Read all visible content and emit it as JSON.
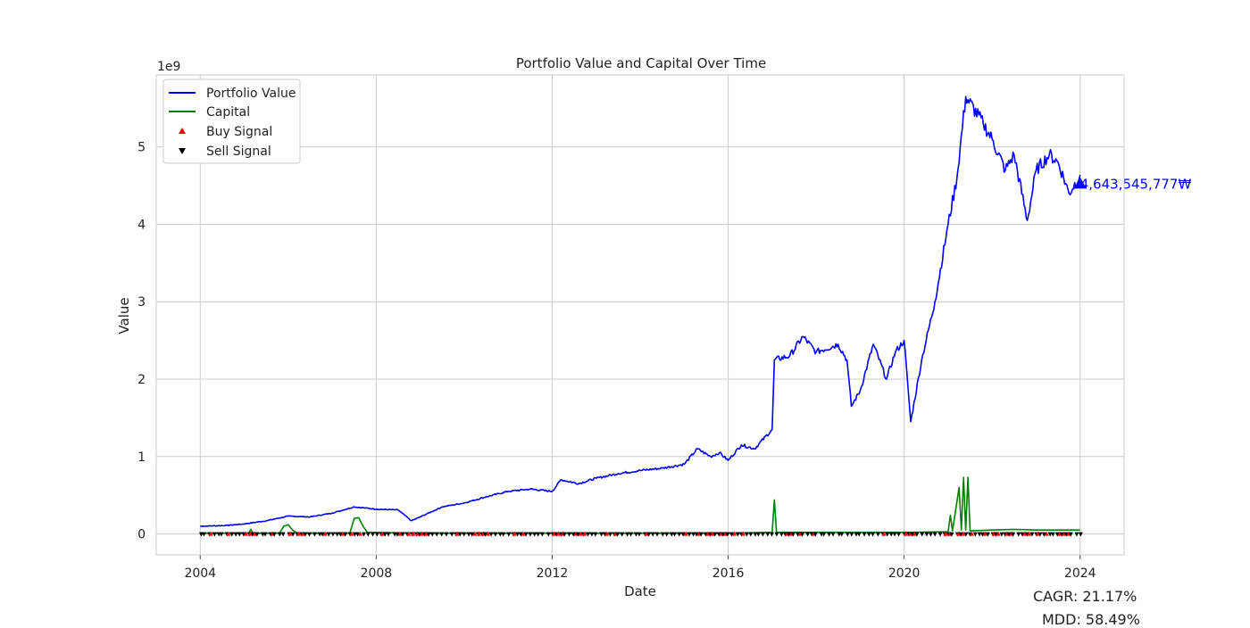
{
  "chart_data": {
    "type": "line",
    "title": "Portfolio Value and Capital Over Time",
    "xlabel": "Date",
    "ylabel": "Value",
    "y_offset_label": "1e9",
    "xlim": [
      2003.0,
      2025.0
    ],
    "ylim": [
      -0.27,
      5.93
    ],
    "x_ticks": [
      2004,
      2008,
      2012,
      2016,
      2020,
      2024
    ],
    "x_tick_labels": [
      "2004",
      "2008",
      "2012",
      "2016",
      "2020",
      "2024"
    ],
    "y_ticks": [
      0,
      1,
      2,
      3,
      4,
      5
    ],
    "y_tick_labels": [
      "0",
      "1",
      "2",
      "3",
      "4",
      "5"
    ],
    "grid": true,
    "legend_position": "top-left",
    "series": [
      {
        "name": "Portfolio Value",
        "color": "#0000ff",
        "points": [
          [
            2004.0,
            0.1
          ],
          [
            2004.6,
            0.11
          ],
          [
            2005.0,
            0.13
          ],
          [
            2005.5,
            0.17
          ],
          [
            2006.0,
            0.23
          ],
          [
            2006.5,
            0.22
          ],
          [
            2007.0,
            0.27
          ],
          [
            2007.5,
            0.35
          ],
          [
            2008.0,
            0.32
          ],
          [
            2008.5,
            0.31
          ],
          [
            2008.8,
            0.17
          ],
          [
            2009.0,
            0.22
          ],
          [
            2009.5,
            0.35
          ],
          [
            2010.0,
            0.4
          ],
          [
            2010.5,
            0.48
          ],
          [
            2011.0,
            0.55
          ],
          [
            2011.5,
            0.58
          ],
          [
            2012.0,
            0.55
          ],
          [
            2012.2,
            0.7
          ],
          [
            2012.6,
            0.65
          ],
          [
            2013.0,
            0.72
          ],
          [
            2013.5,
            0.78
          ],
          [
            2014.0,
            0.82
          ],
          [
            2014.5,
            0.85
          ],
          [
            2015.0,
            0.9
          ],
          [
            2015.3,
            1.1
          ],
          [
            2015.6,
            1.0
          ],
          [
            2015.8,
            1.05
          ],
          [
            2016.0,
            0.95
          ],
          [
            2016.3,
            1.15
          ],
          [
            2016.6,
            1.1
          ],
          [
            2017.0,
            1.35
          ],
          [
            2017.05,
            2.25
          ],
          [
            2017.4,
            2.3
          ],
          [
            2017.7,
            2.55
          ],
          [
            2018.0,
            2.35
          ],
          [
            2018.5,
            2.45
          ],
          [
            2018.7,
            2.25
          ],
          [
            2018.8,
            1.65
          ],
          [
            2019.0,
            1.85
          ],
          [
            2019.3,
            2.45
          ],
          [
            2019.6,
            2.0
          ],
          [
            2019.8,
            2.35
          ],
          [
            2020.0,
            2.5
          ],
          [
            2020.15,
            1.45
          ],
          [
            2020.4,
            2.25
          ],
          [
            2020.7,
            3.0
          ],
          [
            2021.0,
            4.0
          ],
          [
            2021.2,
            4.6
          ],
          [
            2021.4,
            5.65
          ],
          [
            2021.8,
            5.3
          ],
          [
            2022.0,
            5.1
          ],
          [
            2022.3,
            4.7
          ],
          [
            2022.5,
            4.9
          ],
          [
            2022.8,
            4.05
          ],
          [
            2023.0,
            4.7
          ],
          [
            2023.3,
            4.9
          ],
          [
            2023.5,
            4.8
          ],
          [
            2023.75,
            4.4
          ],
          [
            2024.0,
            4.64
          ]
        ]
      },
      {
        "name": "Capital",
        "color": "#008000",
        "points": [
          [
            2004.0,
            0.01
          ],
          [
            2005.1,
            0.01
          ],
          [
            2005.15,
            0.06
          ],
          [
            2005.2,
            0.01
          ],
          [
            2005.8,
            0.01
          ],
          [
            2005.9,
            0.1
          ],
          [
            2006.0,
            0.12
          ],
          [
            2006.1,
            0.05
          ],
          [
            2006.2,
            0.01
          ],
          [
            2007.4,
            0.01
          ],
          [
            2007.5,
            0.2
          ],
          [
            2007.6,
            0.21
          ],
          [
            2007.7,
            0.1
          ],
          [
            2007.8,
            0.02
          ],
          [
            2009.0,
            0.01
          ],
          [
            2012.0,
            0.01
          ],
          [
            2016.0,
            0.01
          ],
          [
            2017.0,
            0.02
          ],
          [
            2017.05,
            0.44
          ],
          [
            2017.1,
            0.02
          ],
          [
            2018.0,
            0.02
          ],
          [
            2020.0,
            0.02
          ],
          [
            2021.0,
            0.03
          ],
          [
            2021.05,
            0.24
          ],
          [
            2021.1,
            0.04
          ],
          [
            2021.25,
            0.6
          ],
          [
            2021.3,
            0.05
          ],
          [
            2021.35,
            0.73
          ],
          [
            2021.4,
            0.05
          ],
          [
            2021.45,
            0.73
          ],
          [
            2021.5,
            0.04
          ],
          [
            2022.0,
            0.05
          ],
          [
            2022.5,
            0.06
          ],
          [
            2023.0,
            0.05
          ],
          [
            2024.0,
            0.05
          ]
        ]
      }
    ],
    "buy_signal": {
      "name": "Buy Signal",
      "color": "#ff0000"
    },
    "sell_signal": {
      "name": "Sell Signal",
      "color": "#000000"
    },
    "final_annotation": {
      "x": 2024.0,
      "y": 4.52,
      "text": "4,643,545,777₩",
      "color": "#0000ff"
    }
  },
  "stats": {
    "cagr": "CAGR: 21.17%",
    "mdd": "MDD: 58.49%"
  }
}
